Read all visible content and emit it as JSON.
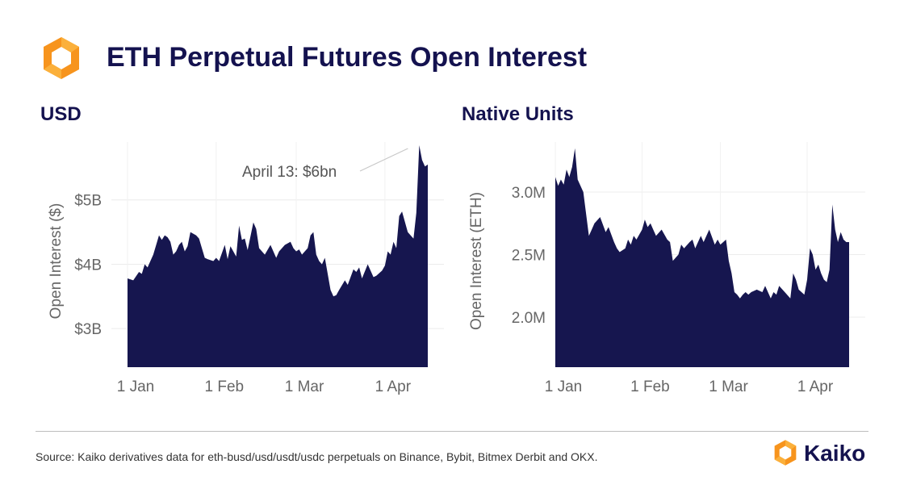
{
  "header": {
    "title": "ETH Perpetual Futures Open Interest",
    "logo_icon": "kaiko-hexagon-logo-icon",
    "logo_colors": [
      "#f7941d",
      "#fbb03b"
    ]
  },
  "footer": {
    "source": "Source: Kaiko derivatives data for eth-busd/usd/usdt/usdc perpetuals on Binance, Bybit, Bitmex Derbit and OKX.",
    "brand": "Kaiko"
  },
  "colors": {
    "fill": "#16164f",
    "title": "#14124f",
    "grid": "#ececec",
    "tick": "#666666"
  },
  "chart_data": [
    {
      "type": "area",
      "panel_title": "USD",
      "ylabel": "Open Interest ($)",
      "xlabel": "",
      "ylim": [
        2.4,
        5.9
      ],
      "yticks": [
        3,
        4,
        5
      ],
      "ytick_labels": [
        "$3B",
        "$4B",
        "$5B"
      ],
      "xticks": [
        "2023-01-01",
        "2023-02-01",
        "2023-03-01",
        "2023-04-01"
      ],
      "xtick_labels": [
        "1 Jan",
        "1 Feb",
        "1 Mar",
        "1 Apr"
      ],
      "grid": true,
      "annotation": {
        "text": "April 13:  $6bn",
        "x": "2023-04-13",
        "y": 5.85
      },
      "x": [
        "2023-01-01",
        "2023-01-03",
        "2023-01-05",
        "2023-01-06",
        "2023-01-07",
        "2023-01-08",
        "2023-01-10",
        "2023-01-12",
        "2023-01-13",
        "2023-01-14",
        "2023-01-15",
        "2023-01-16",
        "2023-01-17",
        "2023-01-18",
        "2023-01-19",
        "2023-01-20",
        "2023-01-21",
        "2023-01-22",
        "2023-01-23",
        "2023-01-25",
        "2023-01-26",
        "2023-01-27",
        "2023-01-28",
        "2023-01-29",
        "2023-01-31",
        "2023-02-01",
        "2023-02-02",
        "2023-02-04",
        "2023-02-05",
        "2023-02-06",
        "2023-02-08",
        "2023-02-09",
        "2023-02-10",
        "2023-02-11",
        "2023-02-12",
        "2023-02-14",
        "2023-02-15",
        "2023-02-16",
        "2023-02-17",
        "2023-02-18",
        "2023-02-20",
        "2023-02-22",
        "2023-02-23",
        "2023-02-25",
        "2023-02-27",
        "2023-02-28",
        "2023-03-01",
        "2023-03-02",
        "2023-03-03",
        "2023-03-05",
        "2023-03-06",
        "2023-03-07",
        "2023-03-08",
        "2023-03-09",
        "2023-03-10",
        "2023-03-11",
        "2023-03-13",
        "2023-03-14",
        "2023-03-15",
        "2023-03-16",
        "2023-03-18",
        "2023-03-19",
        "2023-03-21",
        "2023-03-22",
        "2023-03-23",
        "2023-03-24",
        "2023-03-26",
        "2023-03-28",
        "2023-03-29",
        "2023-03-31",
        "2023-04-01",
        "2023-04-02",
        "2023-04-03",
        "2023-04-04",
        "2023-04-05",
        "2023-04-06",
        "2023-04-07",
        "2023-04-09",
        "2023-04-10",
        "2023-04-11",
        "2023-04-12",
        "2023-04-13",
        "2023-04-14",
        "2023-04-15",
        "2023-04-16"
      ],
      "y": [
        3.78,
        3.75,
        3.88,
        3.85,
        4.0,
        3.95,
        4.15,
        4.45,
        4.38,
        4.45,
        4.42,
        4.35,
        4.15,
        4.2,
        4.3,
        4.35,
        4.2,
        4.28,
        4.5,
        4.45,
        4.4,
        4.25,
        4.1,
        4.08,
        4.05,
        4.1,
        4.05,
        4.3,
        4.08,
        4.28,
        4.12,
        4.6,
        4.38,
        4.4,
        4.22,
        4.65,
        4.55,
        4.25,
        4.2,
        4.15,
        4.3,
        4.1,
        4.2,
        4.3,
        4.35,
        4.25,
        4.2,
        4.23,
        4.15,
        4.25,
        4.45,
        4.5,
        4.15,
        4.05,
        4.0,
        4.1,
        3.6,
        3.5,
        3.52,
        3.6,
        3.75,
        3.68,
        3.92,
        3.88,
        3.95,
        3.78,
        4.0,
        3.8,
        3.82,
        3.9,
        3.98,
        4.2,
        4.15,
        4.35,
        4.25,
        4.75,
        4.82,
        4.5,
        4.45,
        4.4,
        4.8,
        5.85,
        5.62,
        5.52,
        5.55
      ],
      "fill": "#16164f"
    },
    {
      "type": "area",
      "panel_title": "Native Units",
      "ylabel": "Open Interest (ETH)",
      "xlabel": "",
      "ylim": [
        1.6,
        3.4
      ],
      "yticks": [
        2.0,
        2.5,
        3.0
      ],
      "ytick_labels": [
        "2.0M",
        "2.5M",
        "3.0M"
      ],
      "xticks": [
        "2023-01-01",
        "2023-02-01",
        "2023-03-01",
        "2023-04-01"
      ],
      "xtick_labels": [
        "1 Jan",
        "1 Feb",
        "1 Mar",
        "1 Apr"
      ],
      "grid": true,
      "x": [
        "2023-01-01",
        "2023-01-02",
        "2023-01-03",
        "2023-01-04",
        "2023-01-05",
        "2023-01-06",
        "2023-01-07",
        "2023-01-08",
        "2023-01-09",
        "2023-01-10",
        "2023-01-11",
        "2023-01-13",
        "2023-01-14",
        "2023-01-15",
        "2023-01-17",
        "2023-01-19",
        "2023-01-20",
        "2023-01-22",
        "2023-01-23",
        "2023-01-24",
        "2023-01-26",
        "2023-01-27",
        "2023-01-28",
        "2023-01-29",
        "2023-01-30",
        "2023-02-01",
        "2023-02-02",
        "2023-02-03",
        "2023-02-04",
        "2023-02-05",
        "2023-02-06",
        "2023-02-08",
        "2023-02-10",
        "2023-02-11",
        "2023-02-12",
        "2023-02-14",
        "2023-02-15",
        "2023-02-16",
        "2023-02-18",
        "2023-02-19",
        "2023-02-20",
        "2023-02-22",
        "2023-02-23",
        "2023-02-25",
        "2023-02-27",
        "2023-02-28",
        "2023-03-01",
        "2023-03-02",
        "2023-03-03",
        "2023-03-04",
        "2023-03-05",
        "2023-03-06",
        "2023-03-07",
        "2023-03-08",
        "2023-03-09",
        "2023-03-10",
        "2023-03-11",
        "2023-03-12",
        "2023-03-14",
        "2023-03-16",
        "2023-03-17",
        "2023-03-19",
        "2023-03-20",
        "2023-03-21",
        "2023-03-22",
        "2023-03-24",
        "2023-03-26",
        "2023-03-27",
        "2023-03-28",
        "2023-03-29",
        "2023-03-31",
        "2023-04-01",
        "2023-04-02",
        "2023-04-03",
        "2023-04-04",
        "2023-04-05",
        "2023-04-06",
        "2023-04-07",
        "2023-04-08",
        "2023-04-09",
        "2023-04-10",
        "2023-04-11",
        "2023-04-12",
        "2023-04-13",
        "2023-04-14",
        "2023-04-15",
        "2023-04-16"
      ],
      "y": [
        3.12,
        3.05,
        3.1,
        3.06,
        3.18,
        3.12,
        3.2,
        3.35,
        3.1,
        3.05,
        3.0,
        2.65,
        2.7,
        2.75,
        2.8,
        2.68,
        2.72,
        2.6,
        2.55,
        2.52,
        2.55,
        2.62,
        2.58,
        2.65,
        2.62,
        2.7,
        2.78,
        2.72,
        2.75,
        2.7,
        2.65,
        2.7,
        2.62,
        2.6,
        2.45,
        2.5,
        2.58,
        2.55,
        2.6,
        2.62,
        2.55,
        2.65,
        2.6,
        2.7,
        2.58,
        2.62,
        2.58,
        2.6,
        2.62,
        2.45,
        2.35,
        2.2,
        2.18,
        2.15,
        2.18,
        2.2,
        2.18,
        2.2,
        2.22,
        2.2,
        2.25,
        2.15,
        2.2,
        2.18,
        2.25,
        2.2,
        2.15,
        2.35,
        2.3,
        2.22,
        2.18,
        2.3,
        2.55,
        2.5,
        2.38,
        2.42,
        2.35,
        2.3,
        2.28,
        2.38,
        2.9,
        2.7,
        2.6,
        2.68,
        2.62,
        2.6,
        2.6
      ],
      "fill": "#16164f"
    }
  ]
}
